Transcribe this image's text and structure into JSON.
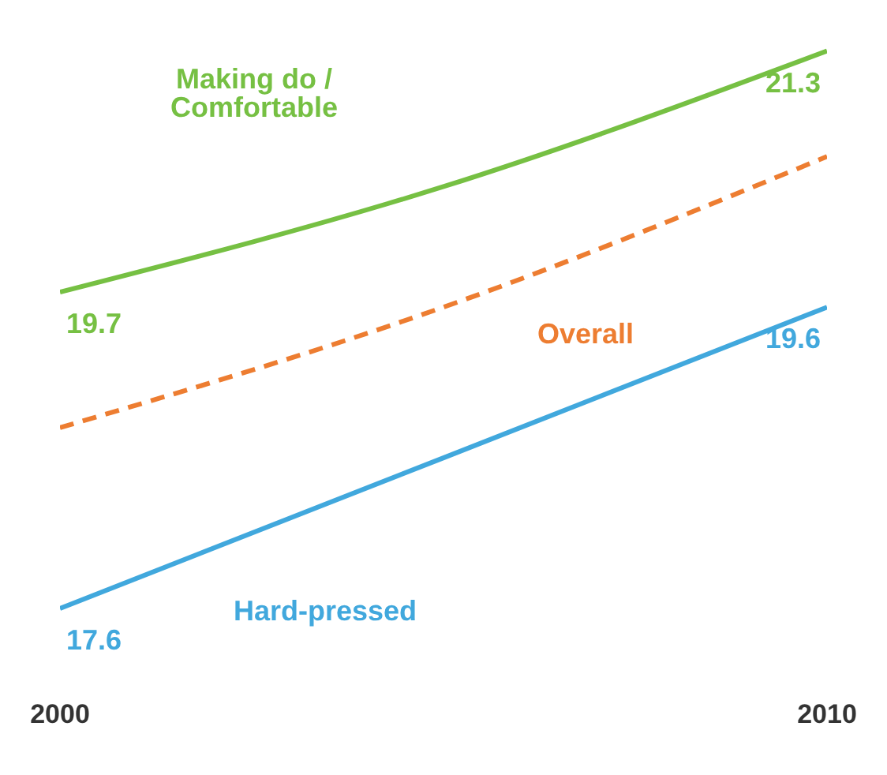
{
  "chart_data": {
    "type": "line",
    "x": [
      2000,
      2005,
      2010
    ],
    "xlim": [
      2000,
      2010
    ],
    "xticks": [
      2000,
      2010
    ],
    "tick_labels": "x",
    "marker": "none",
    "series": [
      {
        "name": "Making do / Comfortable",
        "color": "#76c043",
        "values": [
          19.7,
          20.4,
          21.3
        ],
        "value_labels": [
          "19.7",
          null,
          "21.3"
        ],
        "line_style": "solid"
      },
      {
        "name": "Overall",
        "color": "#ed7d31",
        "values": [
          18.8,
          19.6,
          20.6
        ],
        "line_style": "dashed"
      },
      {
        "name": "Hard-pressed",
        "color": "#41a8dd",
        "values": [
          17.6,
          18.6,
          19.6
        ],
        "value_labels": [
          "17.6",
          null,
          "19.6"
        ],
        "line_style": "solid"
      }
    ]
  }
}
